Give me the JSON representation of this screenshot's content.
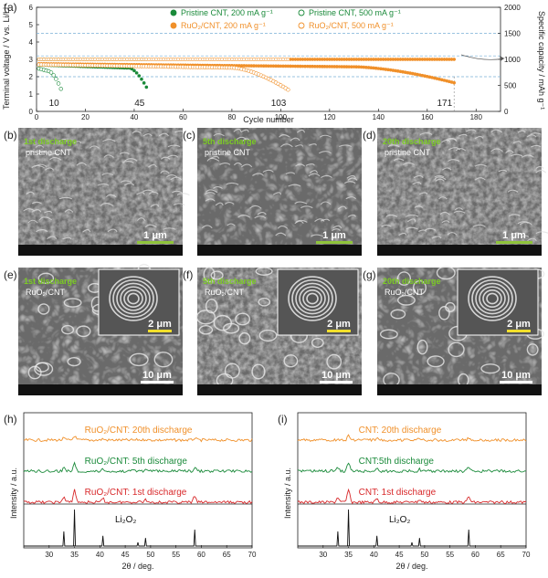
{
  "panel_labels": {
    "a": "(a)",
    "b": "(b)",
    "c": "(c)",
    "d": "(d)",
    "e": "(e)",
    "f": "(f)",
    "g": "(g)",
    "h": "(h)",
    "i": "(i)"
  },
  "colors": {
    "green": "#1a8a3a",
    "orange": "#f0902a",
    "red": "#d8282a",
    "black": "#111111",
    "dashed": "#7ab0d8",
    "sem_dark": "#2b2b2b",
    "scale_green": "#8fc43a",
    "label_green": "#7ccc24"
  },
  "chart_data": [
    {
      "type": "scatter",
      "panel": "(a)",
      "xlabel": "Cycle number",
      "ylabel_left": "Terminal voltage / V vs. Li/Li⁺",
      "ylabel_right": "Specific capacity / mAh g⁻¹",
      "xlim": [
        0,
        190
      ],
      "ylim_left": [
        0,
        6
      ],
      "ylim_right": [
        0,
        2000
      ],
      "x_ticks": [
        "0",
        "20",
        "40",
        "60",
        "80",
        "100",
        "120",
        "140",
        "160",
        "180"
      ],
      "y_ticks_left": [
        "0",
        "1",
        "2",
        "3",
        "4",
        "5",
        "6"
      ],
      "y_ticks_right": [
        "0",
        "500",
        "1000",
        "1500",
        "2000"
      ],
      "legend": [
        {
          "label": "Pristine CNT, 200 mA g⁻¹",
          "marker": "filled",
          "color": "#1a8a3a"
        },
        {
          "label": "Pristine CNT, 500 mA g⁻¹",
          "marker": "open",
          "color": "#1a8a3a"
        },
        {
          "label": "RuO₂/CNT, 200 mA g⁻¹",
          "marker": "filled",
          "color": "#f0902a"
        },
        {
          "label": "RuO₂/CNT, 500 mA g⁻¹",
          "marker": "open",
          "color": "#f0902a"
        }
      ],
      "series": [
        {
          "name": "Pristine CNT, 200 mA g⁻¹",
          "color": "#1a8a3a",
          "filled": true,
          "start": 2.68,
          "end_cycle": 45,
          "plateau_end": 38,
          "drop_to": 1.4,
          "capacity_value": 1000
        },
        {
          "name": "Pristine CNT, 500 mA g⁻¹",
          "color": "#1a8a3a",
          "filled": false,
          "start": 2.5,
          "end_cycle": 10,
          "plateau_end": 5,
          "drop_to": 1.3,
          "capacity_value": 1000
        },
        {
          "name": "RuO₂/CNT, 200 mA g⁻¹",
          "color": "#f0902a",
          "filled": true,
          "start": 2.75,
          "end_cycle": 171,
          "plateau_end": 130,
          "drop_to": 1.65,
          "capacity_value": 1000
        },
        {
          "name": "RuO₂/CNT, 500 mA g⁻¹",
          "color": "#f0902a",
          "filled": false,
          "start": 2.7,
          "end_cycle": 103,
          "plateau_end": 80,
          "drop_to": 1.25,
          "capacity_value": 1000
        }
      ],
      "ref_lines": [
        2,
        3.2,
        4.5
      ],
      "annotations": [
        {
          "text": "10",
          "color": "#1a8a3a",
          "x": 10
        },
        {
          "text": "45",
          "color": "#1a8a3a",
          "x": 45
        },
        {
          "text": "103",
          "color": "#f0902a",
          "x": 103
        },
        {
          "text": "171",
          "color": "#f0902a",
          "x": 171
        }
      ]
    },
    {
      "type": "line",
      "panel": "(h)",
      "xlabel": "2θ / deg.",
      "ylabel": "Intensity / a.u.",
      "xlim": [
        25,
        70
      ],
      "x_ticks": [
        "30",
        "35",
        "40",
        "45",
        "50",
        "55",
        "60",
        "65",
        "70"
      ],
      "series": [
        {
          "name": "RuO₂/CNT: 20th discharge",
          "color": "#f0902a"
        },
        {
          "name": "RuO₂/CNT: 5th discharge",
          "color": "#1a8a3a"
        },
        {
          "name": "RuO₂/CNT: 1st discharge",
          "color": "#d8282a"
        }
      ],
      "reference": {
        "name": "Li₂O₂",
        "peaks": [
          [
            32.9,
            0.4
          ],
          [
            35.0,
            1.0
          ],
          [
            40.6,
            0.28
          ],
          [
            47.5,
            0.1
          ],
          [
            49.0,
            0.22
          ],
          [
            58.7,
            0.45
          ]
        ]
      }
    },
    {
      "type": "line",
      "panel": "(i)",
      "xlabel": "2θ / deg.",
      "ylabel": "Intensity / a.u.",
      "xlim": [
        25,
        70
      ],
      "x_ticks": [
        "30",
        "35",
        "40",
        "45",
        "50",
        "55",
        "60",
        "65",
        "70"
      ],
      "series": [
        {
          "name": "CNT: 20th discharge",
          "color": "#f0902a"
        },
        {
          "name": "CNT:5th discharge",
          "color": "#1a8a3a"
        },
        {
          "name": "CNT: 1st discharge",
          "color": "#d8282a"
        }
      ],
      "reference": {
        "name": "Li₂O₂",
        "peaks": [
          [
            32.9,
            0.4
          ],
          [
            35.0,
            1.0
          ],
          [
            40.6,
            0.28
          ],
          [
            47.5,
            0.1
          ],
          [
            49.0,
            0.22
          ],
          [
            58.7,
            0.45
          ]
        ]
      }
    }
  ],
  "sem_panels": [
    {
      "id": "b",
      "line1": "1st discharge",
      "line2": "pristine CNT",
      "scale": "1 μm"
    },
    {
      "id": "c",
      "line1": "5th discharge",
      "line2": "pristine CNT",
      "scale": "1 μm"
    },
    {
      "id": "d",
      "line1": "20th discharge",
      "line2": "pristine CNT",
      "scale": "1 μm"
    },
    {
      "id": "e",
      "line1": "1st discharge",
      "line2": "RuO₂/CNT",
      "scale": "10 μm",
      "inset_scale": "2 μm"
    },
    {
      "id": "f",
      "line1": "5th discharge",
      "line2": "RuO₂/CNT",
      "scale": "10 μm",
      "inset_scale": "2 μm"
    },
    {
      "id": "g",
      "line1": "20th discharge",
      "line2": "RuO₂/CNT",
      "scale": "10 μm",
      "inset_scale": "2 μm"
    }
  ]
}
